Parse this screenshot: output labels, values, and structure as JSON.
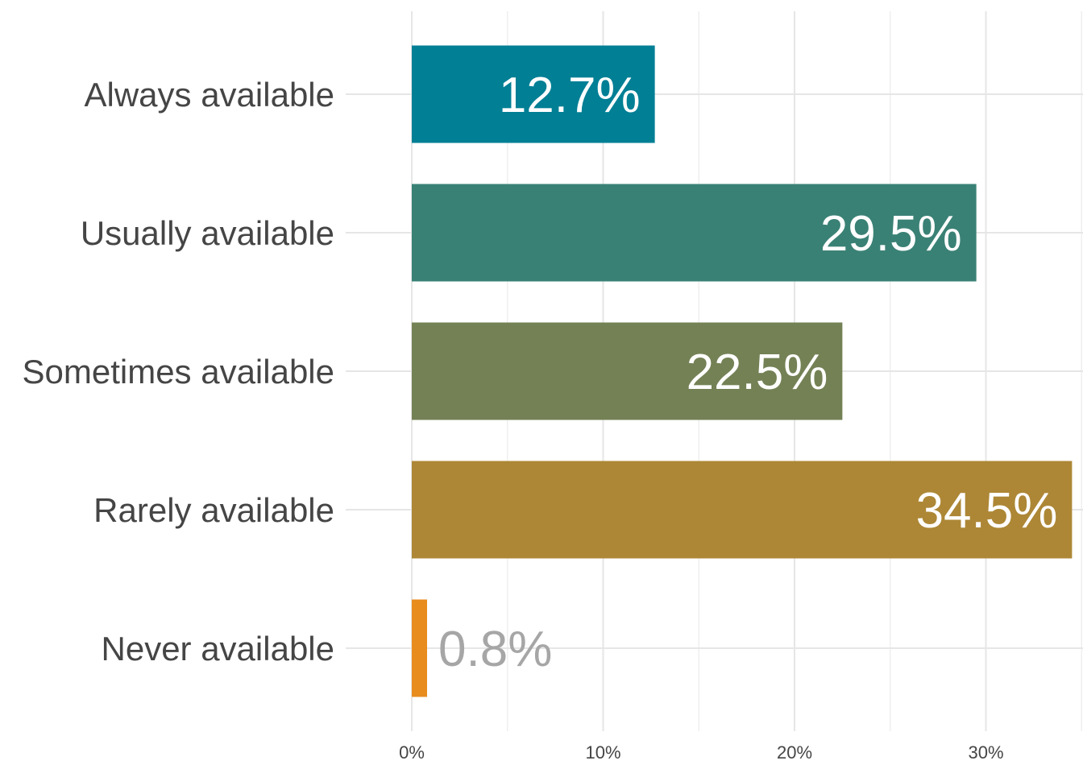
{
  "chart_data": {
    "type": "bar",
    "orientation": "horizontal",
    "categories": [
      "Always available",
      "Usually available",
      "Sometimes available",
      "Rarely available",
      "Never available"
    ],
    "values": [
      12.7,
      29.5,
      22.5,
      34.5,
      0.8
    ],
    "value_labels": [
      "12.7%",
      "29.5%",
      "22.5%",
      "34.5%",
      "0.8%"
    ],
    "colors": [
      "#007F95",
      "#3A8175",
      "#748155",
      "#AD8736",
      "#E88C1E"
    ],
    "label_colors": [
      "#FFFFFF",
      "#FFFFFF",
      "#FFFFFF",
      "#FFFFFF",
      "#A6A6A6"
    ],
    "x_ticks": [
      0,
      10,
      20,
      30
    ],
    "x_tick_labels": [
      "0%",
      "10%",
      "20%",
      "30%"
    ],
    "xlim": [
      0,
      34.5
    ],
    "title": "",
    "xlabel": "",
    "ylabel": "",
    "grid": true,
    "legend": "none"
  }
}
